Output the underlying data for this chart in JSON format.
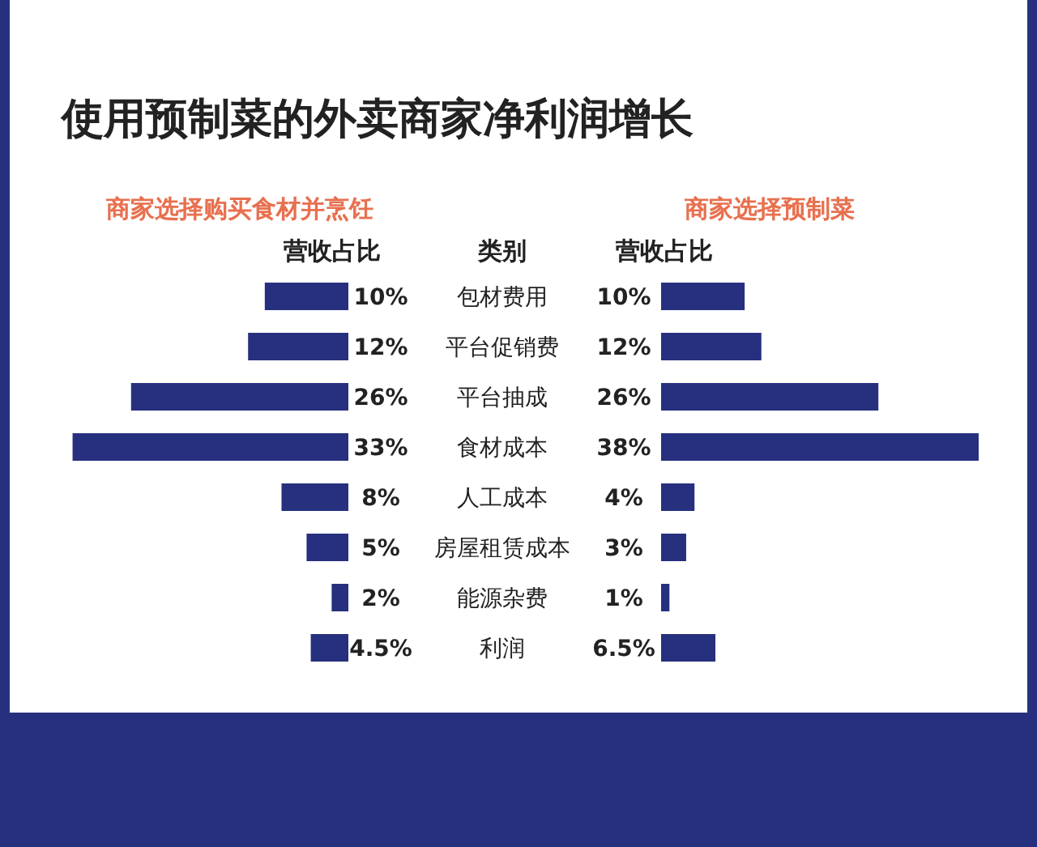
{
  "chart_data": [
    {
      "type": "bar",
      "orientation": "horizontal",
      "title": "使用预制菜的外卖商家净利润增长",
      "categories": [
        "包材费用",
        "平台促销费",
        "平台抽成",
        "食材成本",
        "人工成本",
        "房屋租赁成本",
        "能源杂费",
        "利润"
      ],
      "annotations": [
        "营收占比",
        "类别"
      ],
      "series": [
        {
          "name": "商家选择购买食材并烹饪",
          "color": "#26307e",
          "values": [
            10,
            12,
            26,
            33,
            8,
            5,
            2,
            4.5
          ],
          "value_labels": [
            "10%",
            "12%",
            "26%",
            "33%",
            "8%",
            "5%",
            "2%",
            "4.5%"
          ]
        }
      ]
    },
    {
      "type": "bar",
      "orientation": "horizontal",
      "categories": [
        null,
        null,
        null,
        null,
        null,
        null,
        null,
        null
      ],
      "annotations": [
        "营收占比"
      ],
      "series": [
        {
          "name": "商家选择预制菜",
          "color": "#26307e",
          "values": [
            10,
            12,
            26,
            38,
            4,
            3,
            1,
            6.5
          ],
          "value_labels": [
            "10%",
            "12%",
            "26%",
            "38%",
            "4%",
            "3%",
            "1%",
            "6.5%"
          ]
        }
      ]
    }
  ]
}
